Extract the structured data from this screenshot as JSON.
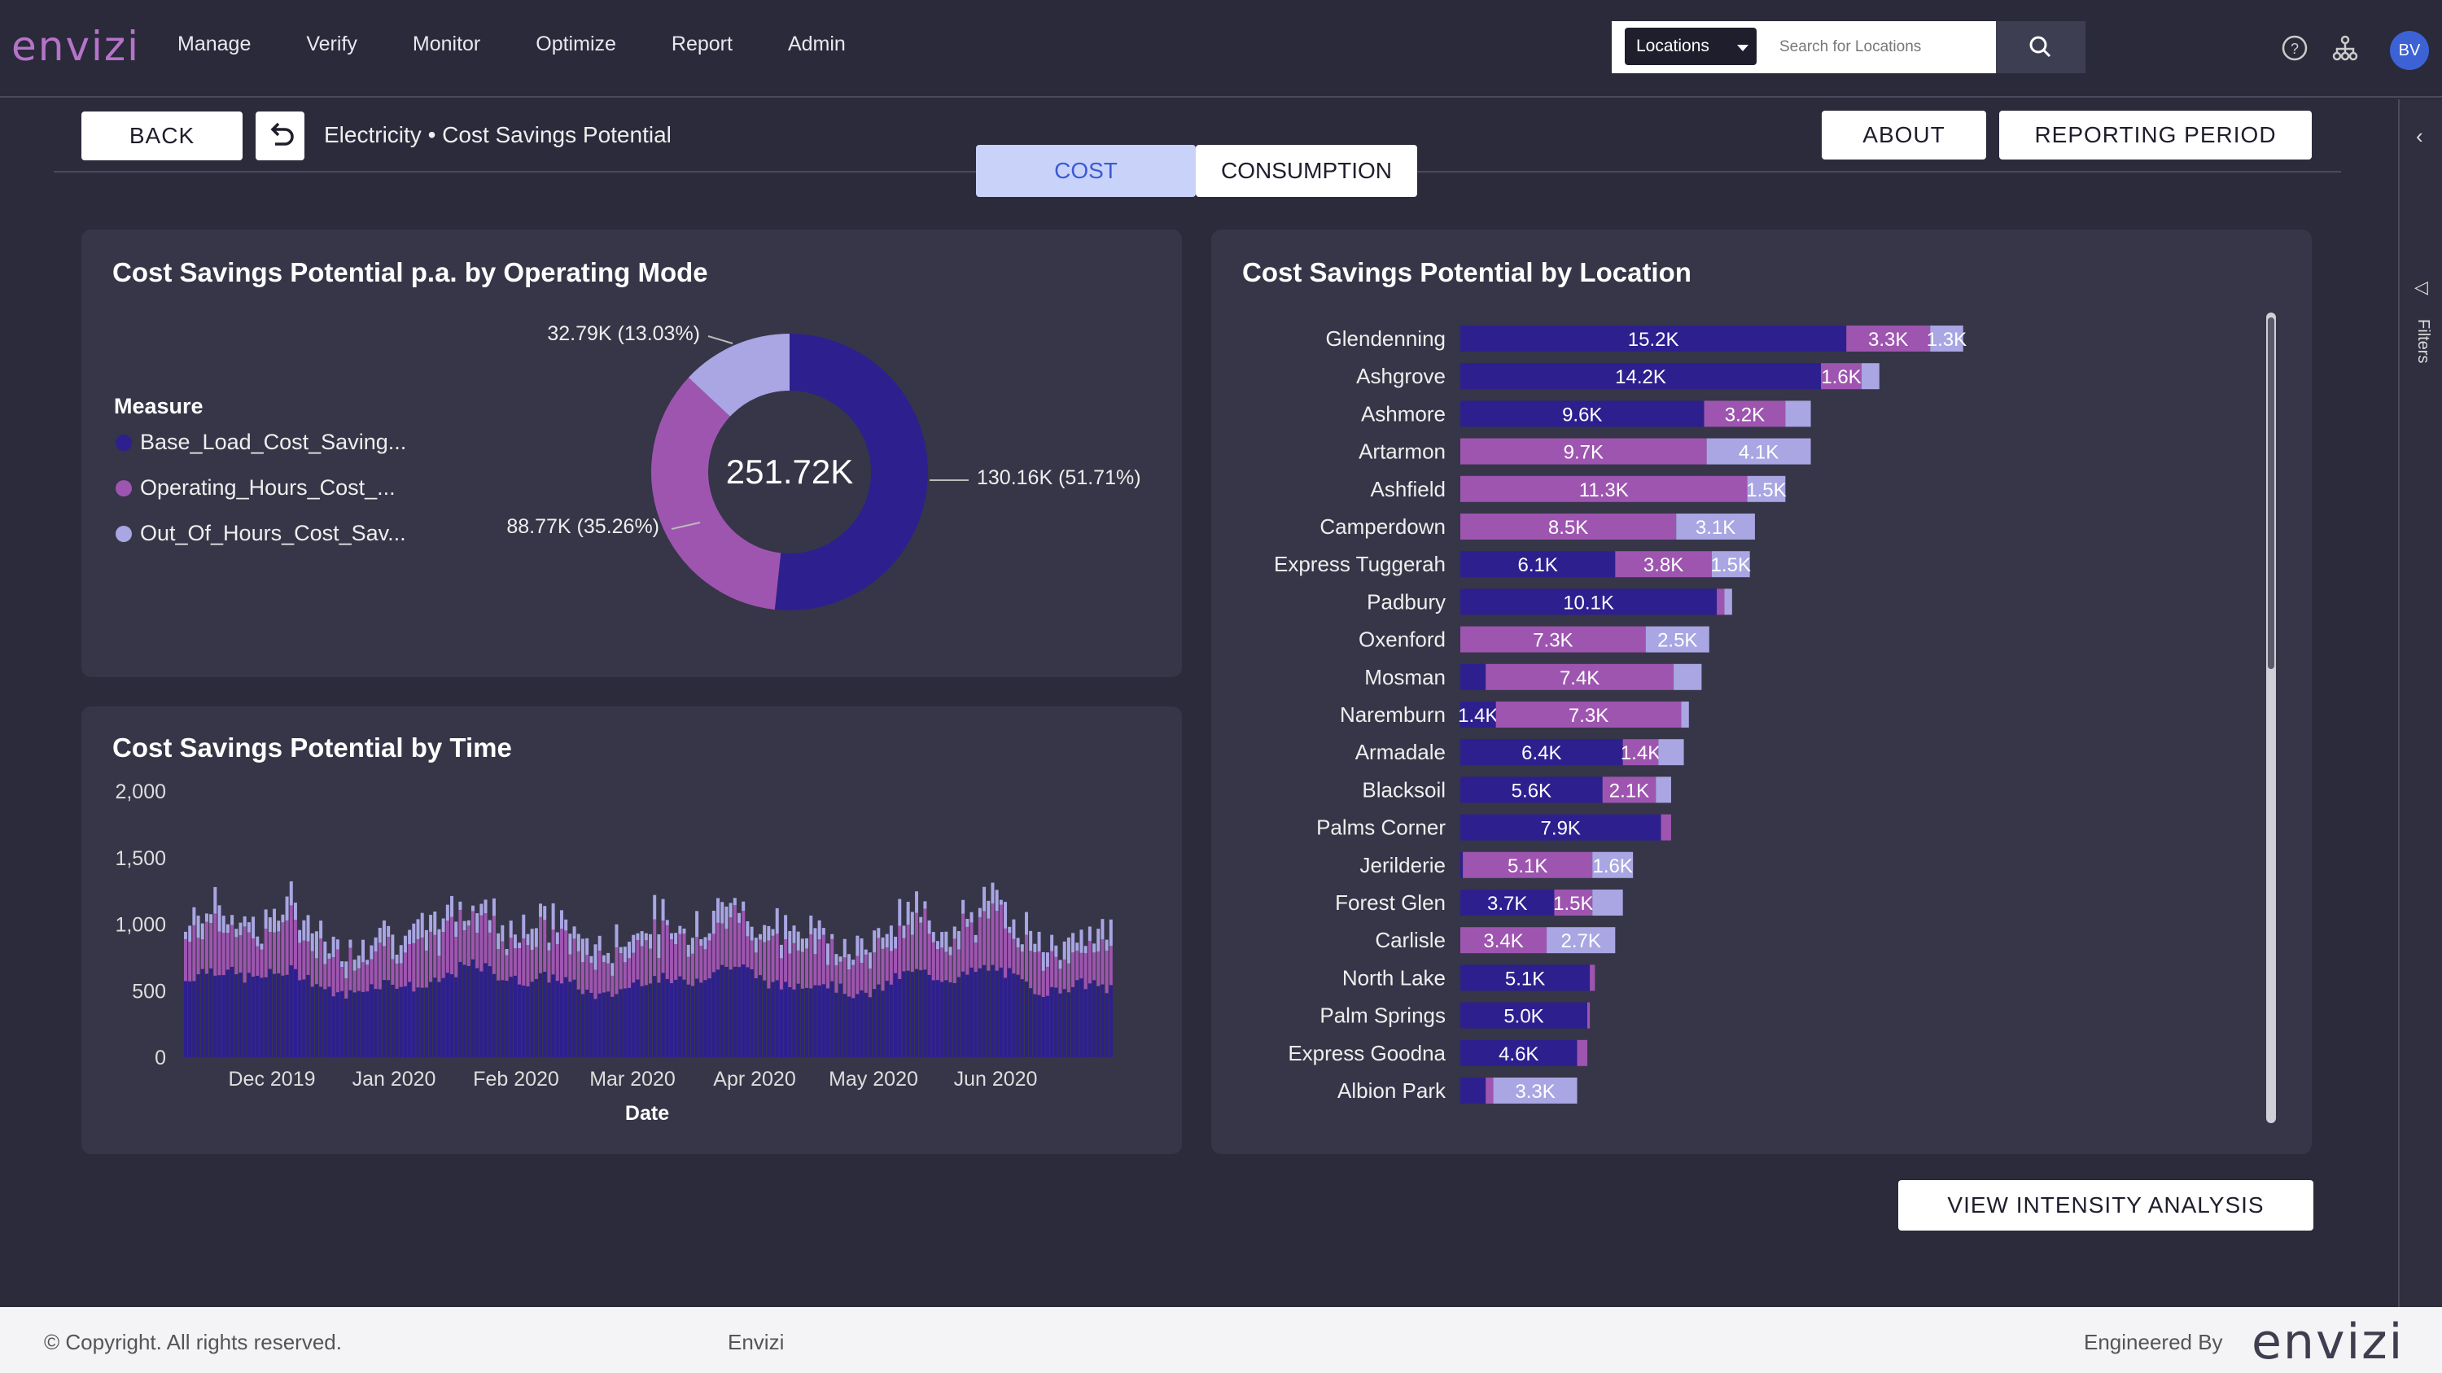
{
  "app": {
    "logo": "envizi"
  },
  "nav": {
    "items": [
      "Manage",
      "Verify",
      "Monitor",
      "Optimize",
      "Report",
      "Admin"
    ]
  },
  "search": {
    "scope": "Locations",
    "placeholder": "Search for Locations"
  },
  "user": {
    "initials": "BV"
  },
  "subheader": {
    "back_label": "BACK",
    "breadcrumb": "Electricity • Cost Savings Potential",
    "about_label": "ABOUT",
    "reporting_label": "REPORTING PERIOD",
    "tabs": [
      "COST",
      "CONSUMPTION"
    ],
    "active_tab": "COST"
  },
  "right_rail": {
    "label": "Filters"
  },
  "colors": {
    "base": "#2e1f8f",
    "operating": "#9e55b0",
    "out_of_hours": "#a9a6e3",
    "panel": "#363648",
    "bg": "#2b2b3c"
  },
  "donut_card": {
    "title": "Cost Savings Potential p.a. by Operating Mode",
    "legend_title": "Measure",
    "legend": [
      "Base_Load_Cost_Saving...",
      "Operating_Hours_Cost_...",
      "Out_Of_Hours_Cost_Sav..."
    ],
    "center_label": "251.72K",
    "slice_labels": [
      "130.16K (51.71%)",
      "88.77K (35.26%)",
      "32.79K (13.03%)"
    ]
  },
  "time_card": {
    "title": "Cost Savings Potential by Time"
  },
  "location_card": {
    "title": "Cost Savings Potential by Location"
  },
  "footer": {
    "copyright": "© Copyright. All rights reserved.",
    "center": "Envizi",
    "engineered_by": "Engineered By",
    "logo": "envizi"
  },
  "view_intensity_label": "VIEW INTENSITY ANALYSIS",
  "chart_data": [
    {
      "type": "pie",
      "title": "Cost Savings Potential p.a. by Operating Mode",
      "center_label": "251.72K",
      "labels": [
        "Base_Load_Cost_Saving...",
        "Operating_Hours_Cost_...",
        "Out_Of_Hours_Cost_Sav..."
      ],
      "values": [
        130.16,
        88.77,
        32.79
      ],
      "percentages": [
        51.71,
        35.26,
        13.03
      ],
      "legend_title": "Measure",
      "legend_position": "left"
    },
    {
      "type": "bar",
      "stacked": true,
      "title": "Cost Savings Potential by Time",
      "xlabel": "Date",
      "ylabel": "",
      "ylim": [
        0,
        2000
      ],
      "yticks": [
        "0",
        "500",
        "1,000",
        "1,500",
        "2,000"
      ],
      "xticks": [
        "Dec 2019",
        "Jan 2020",
        "Feb 2020",
        "Mar 2020",
        "Apr 2020",
        "May 2020",
        "Jun 2020"
      ],
      "x_start": "2019-11-22",
      "x_end": "2020-06-30",
      "series": [
        {
          "name": "Base_Load_Cost_Saving...",
          "level": 620
        },
        {
          "name": "Operating_Hours_Cost_...",
          "level": 300
        },
        {
          "name": "Out_Of_Hours_Cost_Sav...",
          "level": 120
        }
      ]
    },
    {
      "type": "bar",
      "orientation": "horizontal",
      "stacked": true,
      "title": "Cost Savings Potential by Location",
      "categories": [
        "Glendenning",
        "Ashgrove",
        "Ashmore",
        "Artarmon",
        "Ashfield",
        "Camperdown",
        "Express Tuggerah",
        "Padbury",
        "Oxenford",
        "Mosman",
        "Naremburn",
        "Armadale",
        "Blacksoil",
        "Palms Corner",
        "Jerilderie",
        "Forest Glen",
        "Carlisle",
        "North Lake",
        "Palm Springs",
        "Express Goodna",
        "Albion Park"
      ],
      "series": [
        {
          "name": "Base_Load_Cost_Saving...",
          "values": [
            15.2,
            14.2,
            9.6,
            0,
            0,
            0,
            6.1,
            10.1,
            0,
            1.0,
            1.4,
            6.4,
            5.6,
            7.9,
            0.1,
            3.7,
            0,
            5.1,
            5.0,
            4.6,
            1.0
          ],
          "labels": [
            "15.2K",
            "14.2K",
            "9.6K",
            "",
            "",
            "",
            "6.1K",
            "10.1K",
            "",
            "",
            "1.4K",
            "6.4K",
            "5.6K",
            "7.9K",
            "",
            "3.7K",
            "",
            "5.1K",
            "5.0K",
            "4.6K",
            ""
          ]
        },
        {
          "name": "Operating_Hours_Cost_...",
          "values": [
            3.3,
            1.6,
            3.2,
            9.7,
            11.3,
            8.5,
            3.8,
            0.3,
            7.3,
            7.4,
            7.3,
            1.4,
            2.1,
            0.4,
            5.1,
            1.5,
            3.4,
            0.2,
            0.1,
            0.4,
            0.3
          ],
          "labels": [
            "3.3K",
            "1.6K",
            "3.2K",
            "9.7K",
            "11.3K",
            "8.5K",
            "3.8K",
            "",
            "7.3K",
            "7.4K",
            "7.3K",
            "1.4K",
            "2.1K",
            "",
            "5.1K",
            "1.5K",
            "3.4K",
            "",
            "",
            "",
            ""
          ]
        },
        {
          "name": "Out_Of_Hours_Cost_Sav...",
          "values": [
            1.3,
            0.7,
            1.0,
            4.1,
            1.5,
            3.1,
            1.5,
            0.3,
            2.5,
            1.1,
            0.3,
            1.0,
            0.6,
            0,
            1.6,
            1.2,
            2.7,
            0,
            0,
            0,
            3.3
          ],
          "labels": [
            "1.3K",
            "",
            "",
            "4.1K",
            "1.5K",
            "3.1K",
            "1.5K",
            "",
            "2.5K",
            "",
            "",
            "",
            "",
            "",
            "1.6K",
            "",
            "2.7K",
            "",
            "",
            "",
            "3.3K"
          ]
        }
      ]
    }
  ]
}
